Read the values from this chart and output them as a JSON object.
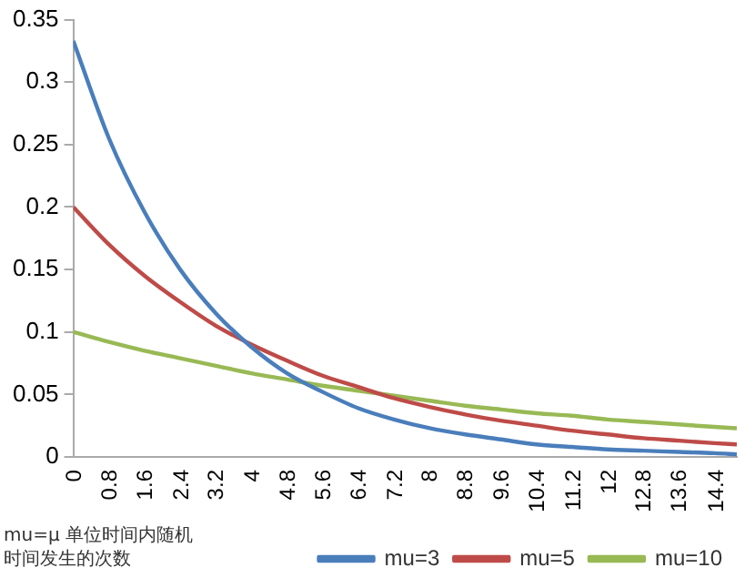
{
  "chart_data": {
    "type": "line",
    "x": [
      0,
      0.8,
      1.6,
      2.4,
      3.2,
      4,
      4.8,
      5.6,
      6.4,
      7.2,
      8,
      8.8,
      9.6,
      10.4,
      11.2,
      12,
      12.8,
      13.6,
      14.4,
      14.9
    ],
    "series": [
      {
        "name": "mu=3",
        "color": "#4a7ebb",
        "values": [
          0.333,
          0.255,
          0.196,
          0.15,
          0.115,
          0.088,
          0.067,
          0.052,
          0.039,
          0.03,
          0.023,
          0.018,
          0.014,
          0.01,
          0.008,
          0.006,
          0.005,
          0.004,
          0.003,
          0.002
        ]
      },
      {
        "name": "mu=5",
        "color": "#be4b48",
        "values": [
          0.2,
          0.17,
          0.145,
          0.124,
          0.105,
          0.09,
          0.077,
          0.065,
          0.056,
          0.047,
          0.04,
          0.034,
          0.029,
          0.025,
          0.021,
          0.018,
          0.015,
          0.013,
          0.011,
          0.01
        ]
      },
      {
        "name": "mu=10",
        "color": "#98b954",
        "values": [
          0.1,
          0.092,
          0.085,
          0.079,
          0.073,
          0.067,
          0.062,
          0.057,
          0.053,
          0.049,
          0.045,
          0.041,
          0.038,
          0.035,
          0.033,
          0.03,
          0.028,
          0.026,
          0.024,
          0.023
        ]
      }
    ],
    "xlim": [
      0,
      14.9
    ],
    "xticks": [
      0,
      0.8,
      1.6,
      2.4,
      3.2,
      4,
      4.8,
      5.6,
      6.4,
      7.2,
      8,
      8.8,
      9.6,
      10.4,
      11.2,
      12,
      12.8,
      13.6,
      14.4
    ],
    "ylim": [
      0,
      0.35
    ],
    "yticks": [
      0,
      0.05,
      0.1,
      0.15,
      0.2,
      0.25,
      0.3,
      0.35
    ],
    "grid": false,
    "legend": "bottom",
    "marker": "none",
    "line_style": "solid",
    "annotations": [
      "mu=μ 单位时间内随机时间发生的次数"
    ]
  }
}
